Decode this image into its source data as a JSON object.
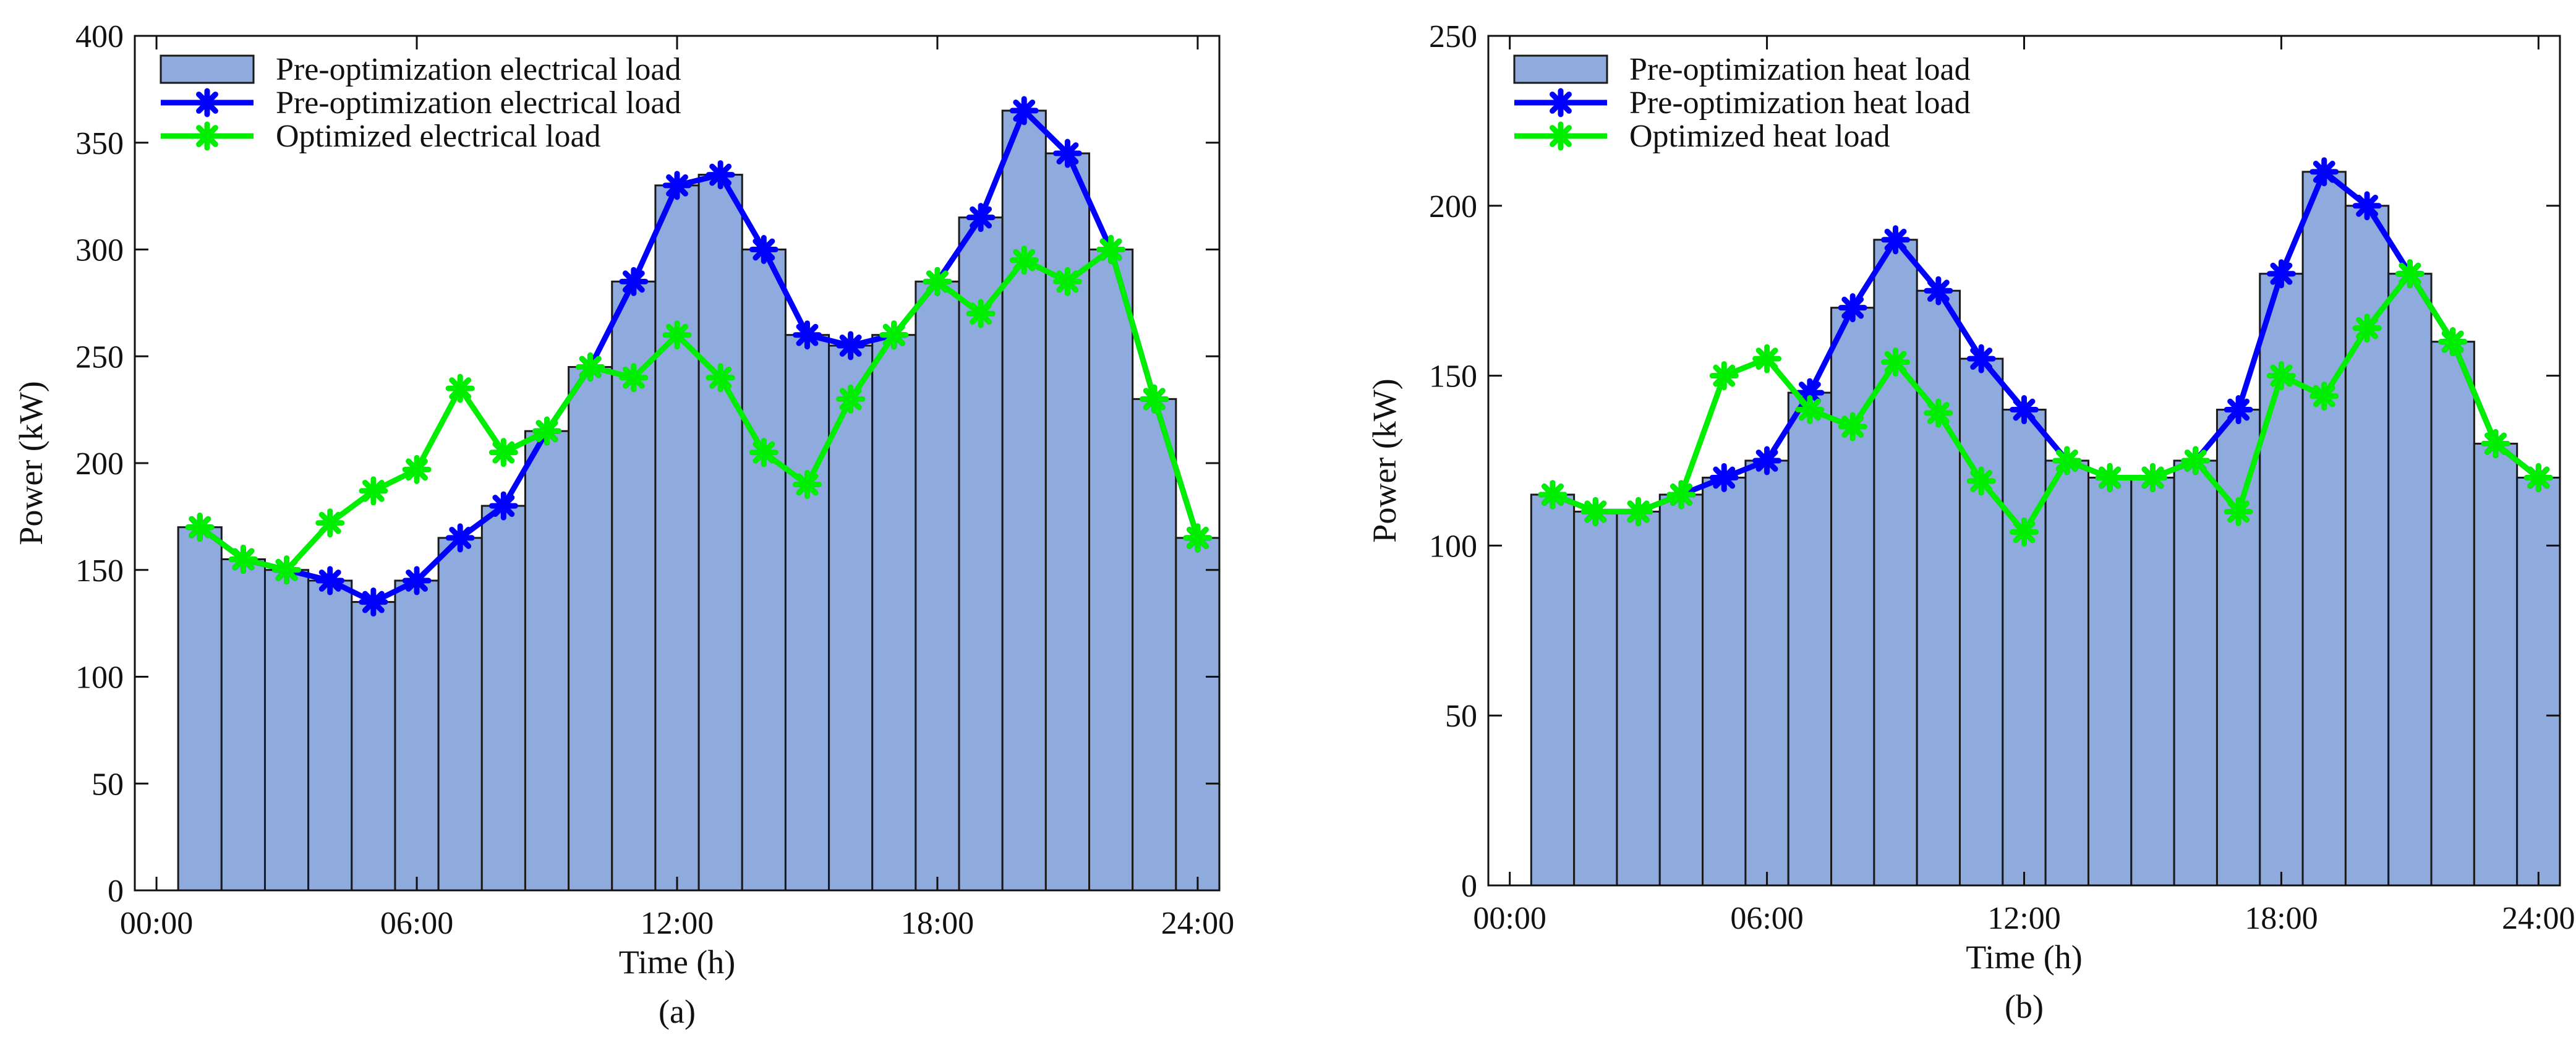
{
  "chart_data": [
    {
      "type": "bar",
      "panel_label": "(a)",
      "xlabel": "Time (h)",
      "ylabel": "Power (kW)",
      "ylim": [
        0,
        400
      ],
      "yticks": [
        0,
        50,
        100,
        150,
        200,
        250,
        300,
        350,
        400
      ],
      "xlim": [
        0,
        24
      ],
      "xticks": [
        {
          "value": 0,
          "label": "00:00"
        },
        {
          "value": 6,
          "label": "06:00"
        },
        {
          "value": 12,
          "label": "12:00"
        },
        {
          "value": 18,
          "label": "18:00"
        },
        {
          "value": 24,
          "label": "24:00"
        }
      ],
      "grid": false,
      "legend_position": "top-left",
      "hours": [
        1,
        2,
        3,
        4,
        5,
        6,
        7,
        8,
        9,
        10,
        11,
        12,
        13,
        14,
        15,
        16,
        17,
        18,
        19,
        20,
        21,
        22,
        23,
        24
      ],
      "series": [
        {
          "name": "Pre-optimization electrical load",
          "kind": "bar",
          "color": "#8faadc",
          "values": [
            170,
            155,
            150,
            145,
            135,
            145,
            165,
            180,
            215,
            245,
            285,
            330,
            335,
            300,
            260,
            255,
            260,
            285,
            315,
            365,
            345,
            300,
            230,
            165
          ]
        },
        {
          "name": "Pre-optimization electrical load",
          "kind": "line",
          "color": "#0000ff",
          "values": [
            170,
            155,
            150,
            145,
            135,
            145,
            165,
            180,
            215,
            245,
            285,
            330,
            335,
            300,
            260,
            255,
            260,
            285,
            315,
            365,
            345,
            300,
            230,
            165
          ]
        },
        {
          "name": "Optimized electrical load",
          "kind": "line",
          "color": "#00ee00",
          "values": [
            170,
            155,
            150,
            172,
            187,
            197,
            235,
            205,
            215,
            245,
            240,
            260,
            240,
            205,
            190,
            230,
            260,
            285,
            270,
            295,
            285,
            300,
            230,
            165
          ]
        }
      ]
    },
    {
      "type": "bar",
      "panel_label": "(b)",
      "xlabel": "Time (h)",
      "ylabel": "Power (kW)",
      "ylim": [
        0,
        250
      ],
      "yticks": [
        0,
        50,
        100,
        150,
        200,
        250
      ],
      "xlim": [
        0,
        24
      ],
      "xticks": [
        {
          "value": 0,
          "label": "00:00"
        },
        {
          "value": 6,
          "label": "06:00"
        },
        {
          "value": 12,
          "label": "12:00"
        },
        {
          "value": 18,
          "label": "18:00"
        },
        {
          "value": 24,
          "label": "24:00"
        }
      ],
      "grid": false,
      "legend_position": "top-left",
      "hours": [
        1,
        2,
        3,
        4,
        5,
        6,
        7,
        8,
        9,
        10,
        11,
        12,
        13,
        14,
        15,
        16,
        17,
        18,
        19,
        20,
        21,
        22,
        23,
        24
      ],
      "series": [
        {
          "name": "Pre-optimization heat load",
          "kind": "bar",
          "color": "#8faadc",
          "values": [
            115,
            110,
            110,
            115,
            120,
            125,
            145,
            170,
            190,
            175,
            155,
            140,
            125,
            120,
            120,
            125,
            140,
            180,
            210,
            200,
            180,
            160,
            130,
            120
          ]
        },
        {
          "name": "Pre-optimization heat load",
          "kind": "line",
          "color": "#0000ff",
          "values": [
            115,
            110,
            110,
            115,
            120,
            125,
            145,
            170,
            190,
            175,
            155,
            140,
            125,
            120,
            120,
            125,
            140,
            180,
            210,
            200,
            180,
            160,
            130,
            120
          ]
        },
        {
          "name": "Optimized heat load",
          "kind": "line",
          "color": "#00ee00",
          "values": [
            115,
            110,
            110,
            115,
            150,
            155,
            140,
            135,
            154,
            139,
            119,
            104,
            125,
            120,
            120,
            125,
            110,
            150,
            144,
            164,
            180,
            160,
            130,
            120
          ]
        }
      ]
    }
  ]
}
